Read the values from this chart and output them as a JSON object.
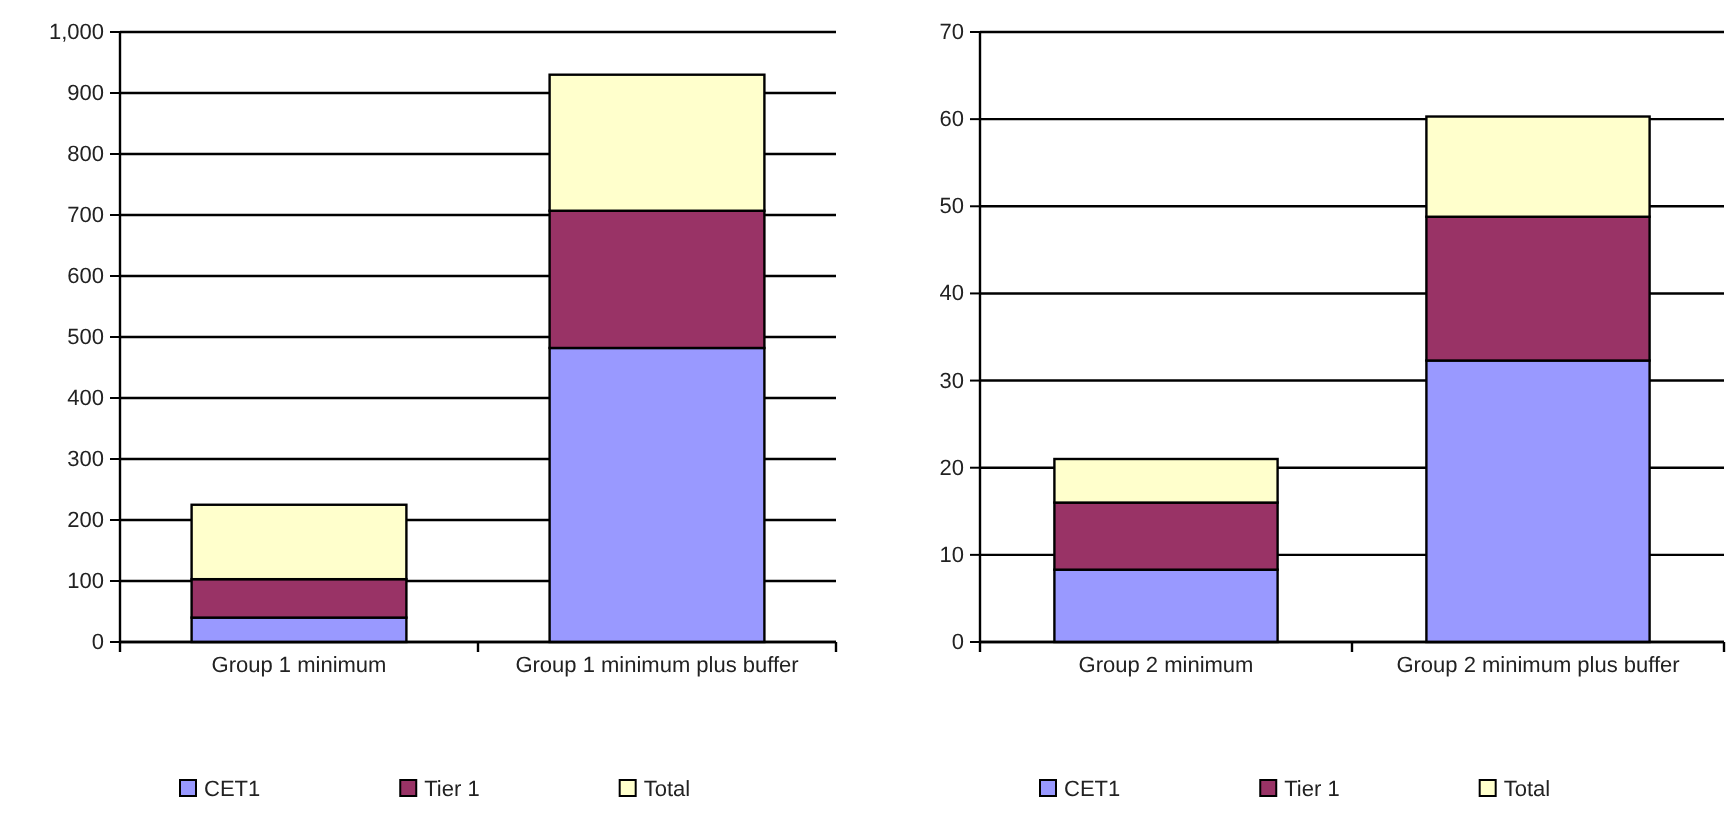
{
  "chart_data": [
    {
      "type": "bar",
      "stacked": true,
      "categories": [
        "Group 1 minimum",
        "Group 1 minimum plus buffer"
      ],
      "series": [
        {
          "name": "CET1",
          "color": "#9999ff",
          "values": [
            40,
            482
          ]
        },
        {
          "name": "Tier 1",
          "color": "#993366",
          "values": [
            63,
            225
          ]
        },
        {
          "name": "Total",
          "color": "#ffffcc",
          "values": [
            122,
            223
          ]
        }
      ],
      "ylim": [
        0,
        1000
      ],
      "yticks": [
        0,
        100,
        200,
        300,
        400,
        500,
        600,
        700,
        800,
        900,
        {
          "value": 1000,
          "label": "1,000"
        }
      ],
      "grid": "y",
      "legend": "bottom"
    },
    {
      "type": "bar",
      "stacked": true,
      "categories": [
        "Group 2 minimum",
        "Group 2 minimum plus buffer"
      ],
      "series": [
        {
          "name": "CET1",
          "color": "#9999ff",
          "values": [
            8.3,
            32.3
          ]
        },
        {
          "name": "Tier 1",
          "color": "#993366",
          "values": [
            7.7,
            16.5
          ]
        },
        {
          "name": "Total",
          "color": "#ffffcc",
          "values": [
            5,
            11.5
          ]
        }
      ],
      "ylim": [
        0,
        70
      ],
      "yticks": [
        0,
        10,
        20,
        30,
        40,
        50,
        60,
        70
      ],
      "grid": "y",
      "legend": "bottom"
    }
  ]
}
